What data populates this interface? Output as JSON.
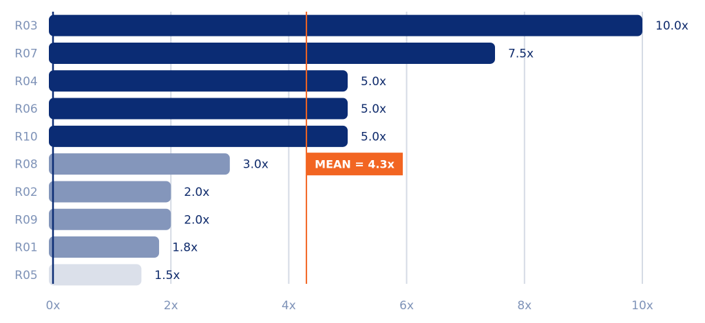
{
  "chart_data": {
    "type": "bar",
    "orientation": "horizontal",
    "categories": [
      "R03",
      "R07",
      "R04",
      "R06",
      "R10",
      "R08",
      "R02",
      "R09",
      "R01",
      "R05"
    ],
    "values": [
      10.0,
      7.5,
      5.0,
      5.0,
      5.0,
      3.0,
      2.0,
      2.0,
      1.8,
      1.5
    ],
    "value_labels": [
      "10.0x",
      "7.5x",
      "5.0x",
      "5.0x",
      "5.0x",
      "3.0x",
      "2.0x",
      "2.0x",
      "1.8x",
      "1.5x"
    ],
    "bar_colors": [
      "#0b2c74",
      "#0b2c74",
      "#0b2c74",
      "#0b2c74",
      "#0b2c74",
      "#8496bb",
      "#8496bb",
      "#8496bb",
      "#8496bb",
      "#dbe0ea"
    ],
    "xlim": [
      0,
      10
    ],
    "x_ticks": [
      0,
      2,
      4,
      6,
      8,
      10
    ],
    "x_tick_labels": [
      "0x",
      "2x",
      "4x",
      "6x",
      "8x",
      "10x"
    ],
    "grid": true,
    "mean": {
      "value": 4.3,
      "label": "MEAN = 4.3x",
      "color": "#f26522"
    },
    "title": "",
    "xlabel": "",
    "ylabel": ""
  },
  "colors": {
    "grid": "#d5dbe5",
    "axis": "#0b2c74",
    "tick_text": "#7f93b8",
    "value_text": "#0e2a6b"
  }
}
